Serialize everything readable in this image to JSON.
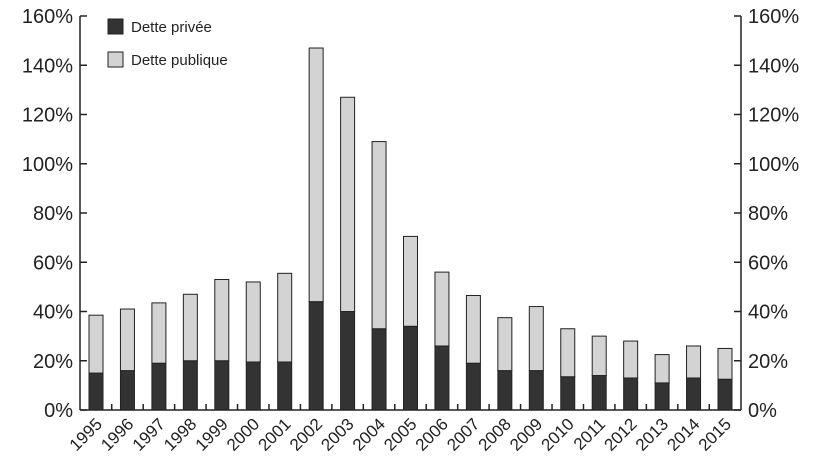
{
  "chart_data": {
    "type": "bar",
    "stacked": true,
    "title": "",
    "xlabel": "",
    "ylabel": "",
    "ylim": [
      0,
      160
    ],
    "yticks": [
      "0%",
      "20%",
      "40%",
      "60%",
      "80%",
      "100%",
      "120%",
      "140%",
      "160%"
    ],
    "y_unit": "%",
    "legend_position": "top-left",
    "grid": false,
    "categories": [
      "1995",
      "1996",
      "1997",
      "1998",
      "1999",
      "2000",
      "2001",
      "2002",
      "2003",
      "2004",
      "2005",
      "2006",
      "2007",
      "2008",
      "2009",
      "2010",
      "2011",
      "2012",
      "2013",
      "2014",
      "2015"
    ],
    "series": [
      {
        "name": "Dette privée",
        "color": "#333333",
        "values": [
          15,
          16,
          19,
          20,
          20,
          19.5,
          19.5,
          44,
          40,
          33,
          34,
          26,
          19,
          16,
          16,
          13.5,
          14,
          13,
          11,
          13,
          12.5
        ]
      },
      {
        "name": "Dette publique",
        "color": "#d3d3d3",
        "values": [
          23.5,
          25,
          24.5,
          27,
          33,
          32.5,
          36,
          103,
          87,
          76,
          36.5,
          30,
          27.5,
          21.5,
          26,
          19.5,
          16,
          15,
          11.5,
          13,
          12.5
        ]
      }
    ]
  }
}
